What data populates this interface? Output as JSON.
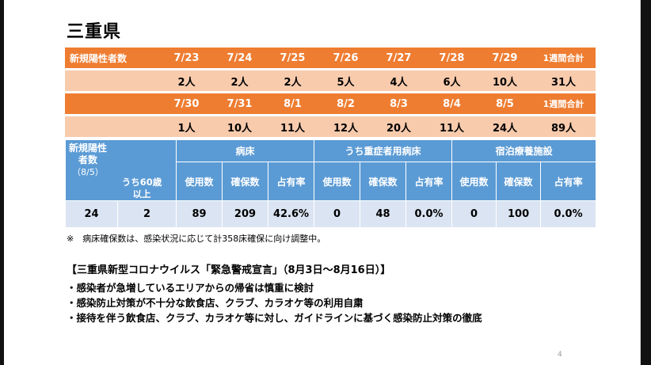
{
  "title": "三重県",
  "cases_table": {
    "row1_header": [
      "新規陽性者数",
      "7/23",
      "7/24",
      "7/25",
      "7/26",
      "7/27",
      "7/28",
      "7/29",
      "1週間合計"
    ],
    "row1_values": [
      "",
      "2人",
      "2人",
      "2人",
      "5人",
      "4人",
      "6人",
      "10人",
      "31人"
    ],
    "row2_header": [
      "",
      "7/30",
      "7/31",
      "8/1",
      "8/2",
      "8/3",
      "8/4",
      "8/5",
      "1週間合計"
    ],
    "row2_values": [
      "",
      "1人",
      "10人",
      "11人",
      "12人",
      "20人",
      "11人",
      "24人",
      "89人"
    ]
  },
  "beds_table": {
    "new_positive_label": "新規陽性者数",
    "new_positive_date": "（8/5）",
    "over60_label": "うち60歳以上",
    "groups": [
      "病床",
      "うち重症者用病床",
      "宿泊療養施設"
    ],
    "sub_headers": [
      "使用数",
      "確保数",
      "占有率",
      "使用数",
      "確保数",
      "占有率",
      "使用数",
      "確保数",
      "占有率"
    ],
    "values": [
      "24",
      "2",
      "89",
      "209",
      "42.6%",
      "0",
      "48",
      "0.0%",
      "0",
      "100",
      "0.0%"
    ]
  },
  "note": "※　病床確保数は、感染状況に応じて計358床確保に向け調整中。",
  "declaration_title": "【三重県新型コロナウイルス「緊急警戒宣言」（8月3日～8月16日）】",
  "bullets": [
    "・感染者が急増しているエリアからの帰省は慎重に検討",
    "・感染防止対策が不十分な飲食店、クラブ、カラオケ等の利用自粛",
    "・接待を伴う飲食店、クラブ、カラオケ等に対し、ガイドラインに基づく感染防止対策の徹底"
  ],
  "page_number": "4"
}
